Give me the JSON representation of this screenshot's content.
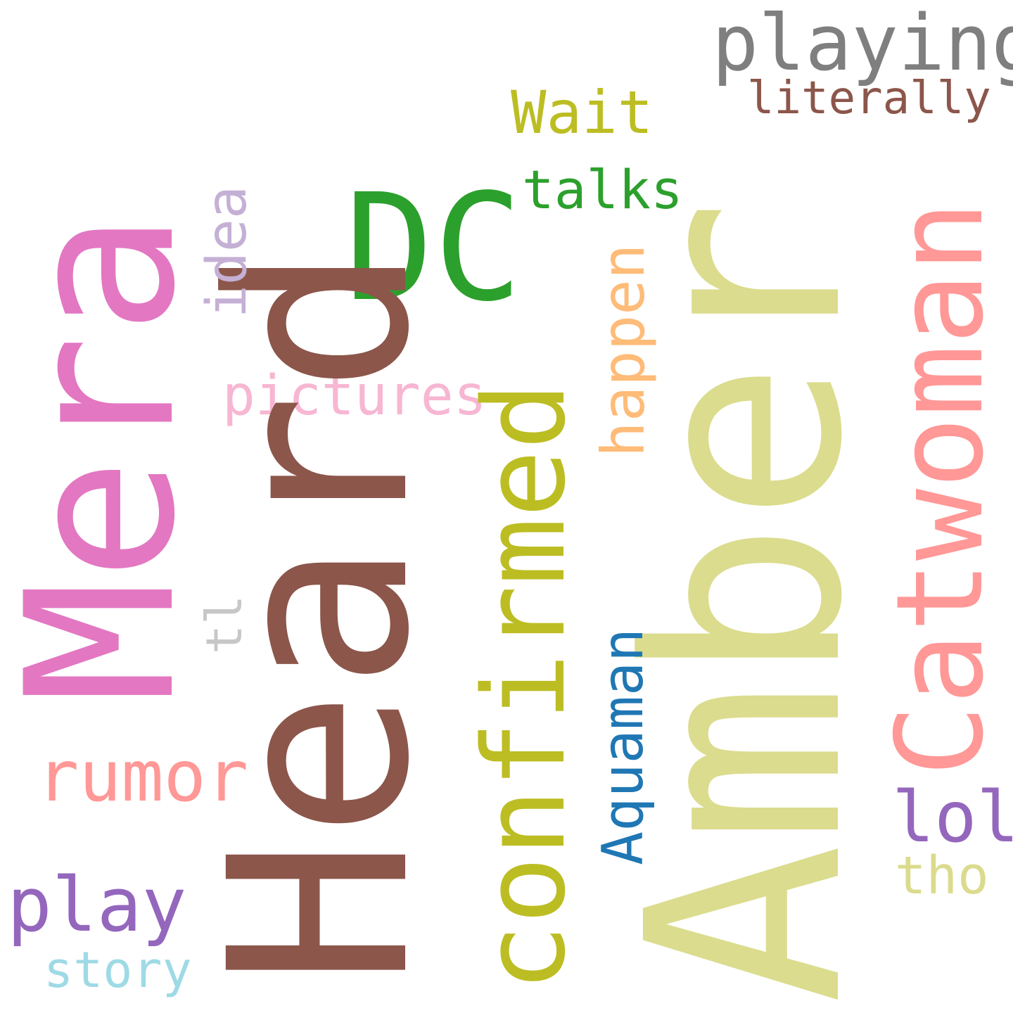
{
  "words": {
    "amber": {
      "text": "Amber",
      "color": "#dbdc8d"
    },
    "heard": {
      "text": "Heard",
      "color": "#8c564b"
    },
    "mera": {
      "text": "Mera",
      "color": "#e377c2"
    },
    "catwoman": {
      "text": "Catwoman",
      "color": "#ff9896"
    },
    "confirmed": {
      "text": "confirmed",
      "color": "#bcbd22"
    },
    "dc": {
      "text": "DC",
      "color": "#2ca02c"
    },
    "playing": {
      "text": "playing",
      "color": "#7f7f7f"
    },
    "literally": {
      "text": "literally",
      "color": "#8c564b"
    },
    "wait": {
      "text": "Wait",
      "color": "#bcbd22"
    },
    "talks": {
      "text": "talks",
      "color": "#2ca02c"
    },
    "idea": {
      "text": "idea",
      "color": "#c5b0d5"
    },
    "pictures": {
      "text": "pictures",
      "color": "#f7b6d2"
    },
    "happen": {
      "text": "happen",
      "color": "#ffbb78"
    },
    "aquaman": {
      "text": "Aquaman",
      "color": "#1f77b4"
    },
    "rumor": {
      "text": "rumor",
      "color": "#ff9896"
    },
    "tl": {
      "text": "tl",
      "color": "#c7c7c7"
    },
    "lol": {
      "text": "lol",
      "color": "#9467bd"
    },
    "tho": {
      "text": "tho",
      "color": "#dbdb8d"
    },
    "play": {
      "text": "play",
      "color": "#9467bd"
    },
    "story": {
      "text": "story",
      "color": "#9edae5"
    }
  }
}
